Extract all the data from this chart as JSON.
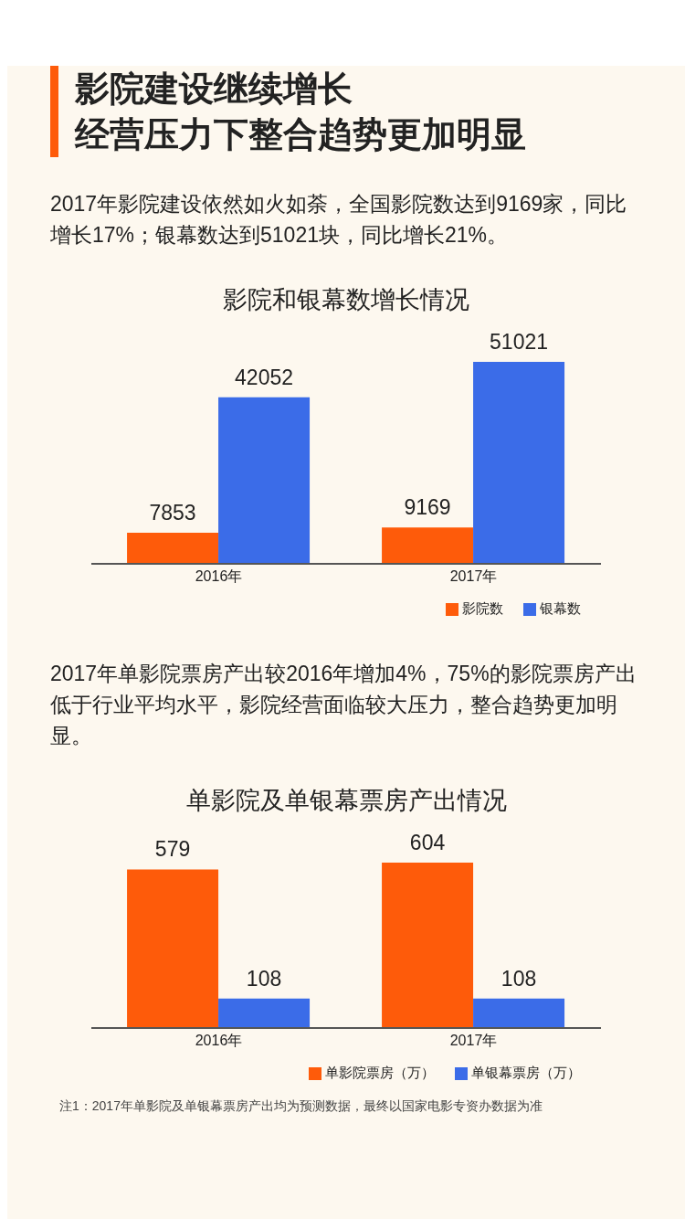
{
  "chart_data": [
    {
      "type": "bar",
      "title": "影院和银幕数增长情况",
      "annotations": [
        "影院建设继续增长",
        "经营压力下整合趋势更加明显",
        "2017年影院建设依然如火如荼，全国影院数达到9169家，同比增长17%；银幕数达到51021块，同比增长21%。"
      ],
      "categories": [
        "2016年",
        "2017年"
      ],
      "series": [
        {
          "name": "影院数",
          "color": "#fe5b0a",
          "values": [
            7853,
            9169
          ]
        },
        {
          "name": "银幕数",
          "color": "#3b6ce8",
          "values": [
            42052,
            51021
          ]
        }
      ],
      "data_labels": true,
      "legend": "bottom right",
      "grid": false
    },
    {
      "type": "bar",
      "title": "单影院及单银幕票房产出情况",
      "annotations": [
        "2017年单影院票房产出较2016年增加4%，75%的影院票房产出低于行业平均水平，影院经营面临较大压力，整合趋势更加明显。",
        "注1：2017年单影院及单银幕票房产出均为预测数据，最终以国家电影专资办数据为准"
      ],
      "categories": [
        "2016年",
        "2017年"
      ],
      "series": [
        {
          "name": "单影院票房（万）",
          "color": "#fe5b0a",
          "values": [
            579,
            604
          ]
        },
        {
          "name": "单银幕票房（万）",
          "color": "#3b6ce8",
          "values": [
            108,
            108
          ]
        }
      ],
      "data_labels": true,
      "legend": "bottom right",
      "grid": false
    }
  ]
}
